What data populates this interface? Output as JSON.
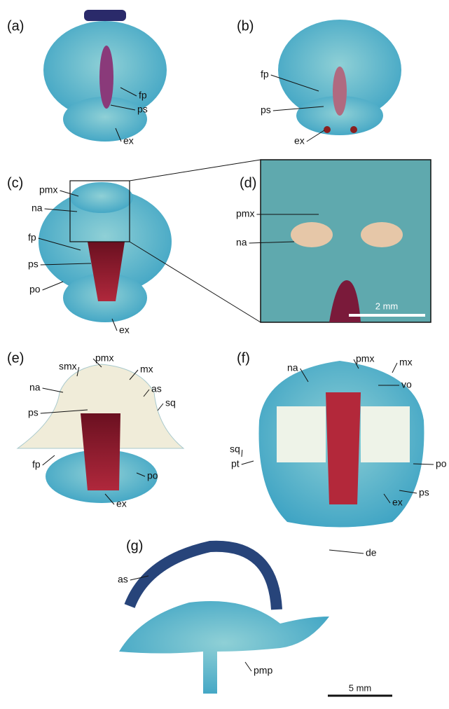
{
  "panels": [
    {
      "label": "(a)",
      "annotations": [
        "fp",
        "ps",
        "ex"
      ]
    },
    {
      "label": "(b)",
      "annotations": [
        "fp",
        "ps",
        "ex"
      ]
    },
    {
      "label": "(c)",
      "annotations": [
        "pmx",
        "na",
        "fp",
        "ps",
        "po",
        "ex"
      ]
    },
    {
      "label": "(d)",
      "annotations": [
        "pmx",
        "na"
      ],
      "scale_bar": "2 mm"
    },
    {
      "label": "(e)",
      "annotations": [
        "pmx",
        "smx",
        "mx",
        "na",
        "as",
        "sq",
        "ps",
        "fp",
        "po",
        "ex"
      ]
    },
    {
      "label": "(f)",
      "annotations": [
        "pmx",
        "na",
        "mx",
        "vo",
        "sq",
        "pt",
        "po",
        "ps",
        "ex"
      ]
    },
    {
      "label": "(g)",
      "annotations": [
        "de",
        "as",
        "pmp"
      ],
      "scale_bar": "5 mm"
    }
  ]
}
